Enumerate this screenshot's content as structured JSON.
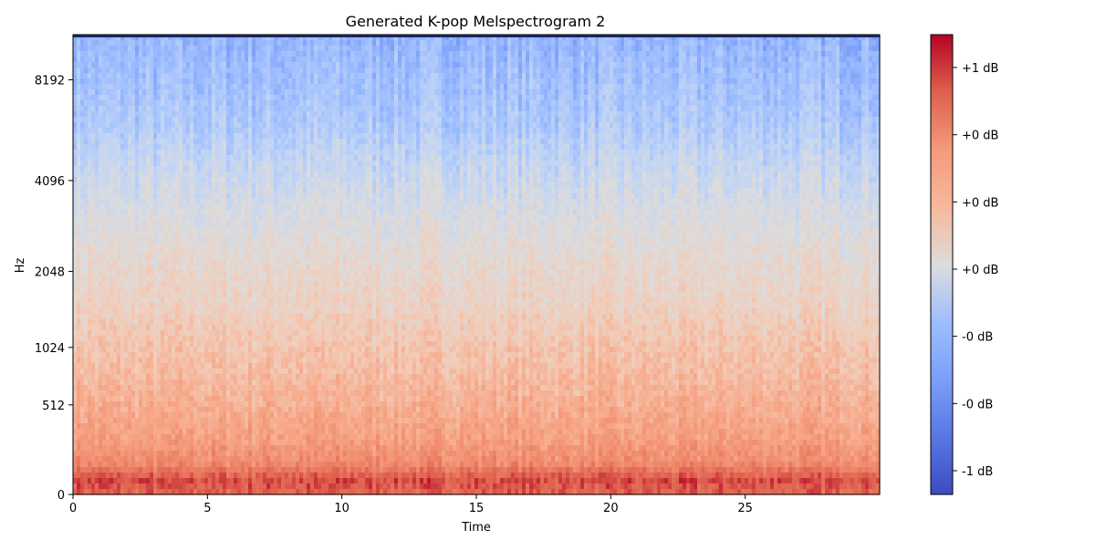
{
  "chart_data": {
    "type": "heatmap",
    "title": "Generated K-pop Melspectrogram 2",
    "xlabel": "Time",
    "ylabel": "Hz",
    "xlim": [
      0,
      30
    ],
    "x_ticks": [
      0,
      5,
      10,
      15,
      20,
      25
    ],
    "x_tick_labels": [
      "0",
      "5",
      "10",
      "15",
      "20",
      "25"
    ],
    "y_scale": "mel",
    "y_ticks": [
      0,
      512,
      1024,
      2048,
      4096,
      8192
    ],
    "y_tick_labels": [
      "0",
      "512",
      "1024",
      "2048",
      "4096",
      "8192"
    ],
    "colormap": "coolwarm",
    "colorbar": {
      "tick_labels": [
        "+1 dB",
        "+0 dB",
        "+0 dB",
        "+0 dB",
        "-0 dB",
        "-0 dB",
        "-1 dB"
      ]
    },
    "intensity_profile": [
      {
        "hz": 0,
        "level": 0.88
      },
      {
        "hz": 64,
        "level": 0.92
      },
      {
        "hz": 150,
        "level": 0.78
      },
      {
        "hz": 300,
        "level": 0.72
      },
      {
        "hz": 512,
        "level": 0.68
      },
      {
        "hz": 800,
        "level": 0.64
      },
      {
        "hz": 1024,
        "level": 0.62
      },
      {
        "hz": 1500,
        "level": 0.57
      },
      {
        "hz": 2048,
        "level": 0.54
      },
      {
        "hz": 3000,
        "level": 0.49
      },
      {
        "hz": 4096,
        "level": 0.44
      },
      {
        "hz": 6000,
        "level": 0.35
      },
      {
        "hz": 8192,
        "level": 0.31
      },
      {
        "hz": 11025,
        "level": 0.27
      }
    ]
  }
}
